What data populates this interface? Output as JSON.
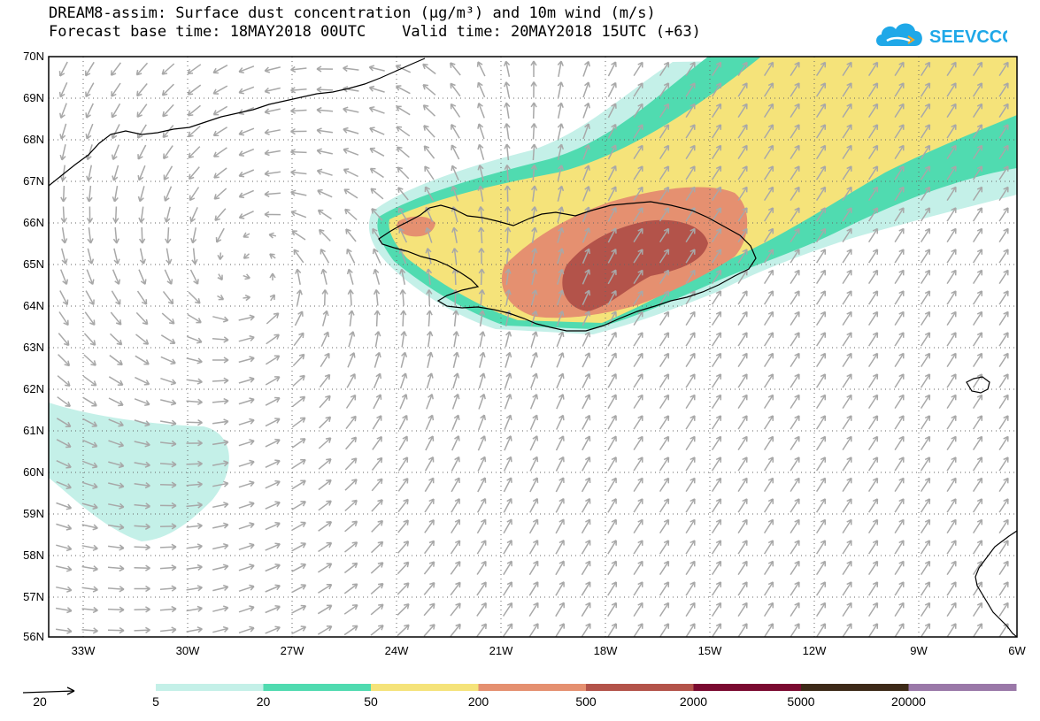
{
  "title_line1": "DREAM8-assim: Surface dust concentration (µg/m³) and 10m wind (m/s)",
  "title_line2": "Forecast base time: 18MAY2018 00UTC    Valid time: 20MAY2018 15UTC (+63)",
  "logo_text": "SEEVCCC",
  "lat_labels": [
    "70N",
    "69N",
    "68N",
    "67N",
    "66N",
    "65N",
    "64N",
    "63N",
    "62N",
    "61N",
    "60N",
    "59N",
    "58N",
    "57N",
    "56N"
  ],
  "lon_labels": [
    "33W",
    "30W",
    "27W",
    "24W",
    "21W",
    "18W",
    "15W",
    "12W",
    "9W",
    "6W"
  ],
  "wind_ref_label": "20",
  "legend": {
    "labels": [
      "5",
      "20",
      "50",
      "200",
      "500",
      "2000",
      "5000",
      "20000"
    ],
    "colors": [
      "#c4f0e8",
      "#50dbb0",
      "#f5e37a",
      "#e59070",
      "#b3534a",
      "#7a0a30",
      "#3d2a18",
      "#9a78a8"
    ]
  },
  "colors": {
    "wind_arrow": "#a8a8a8",
    "coastline": "#000000",
    "grid": "#666666"
  }
}
